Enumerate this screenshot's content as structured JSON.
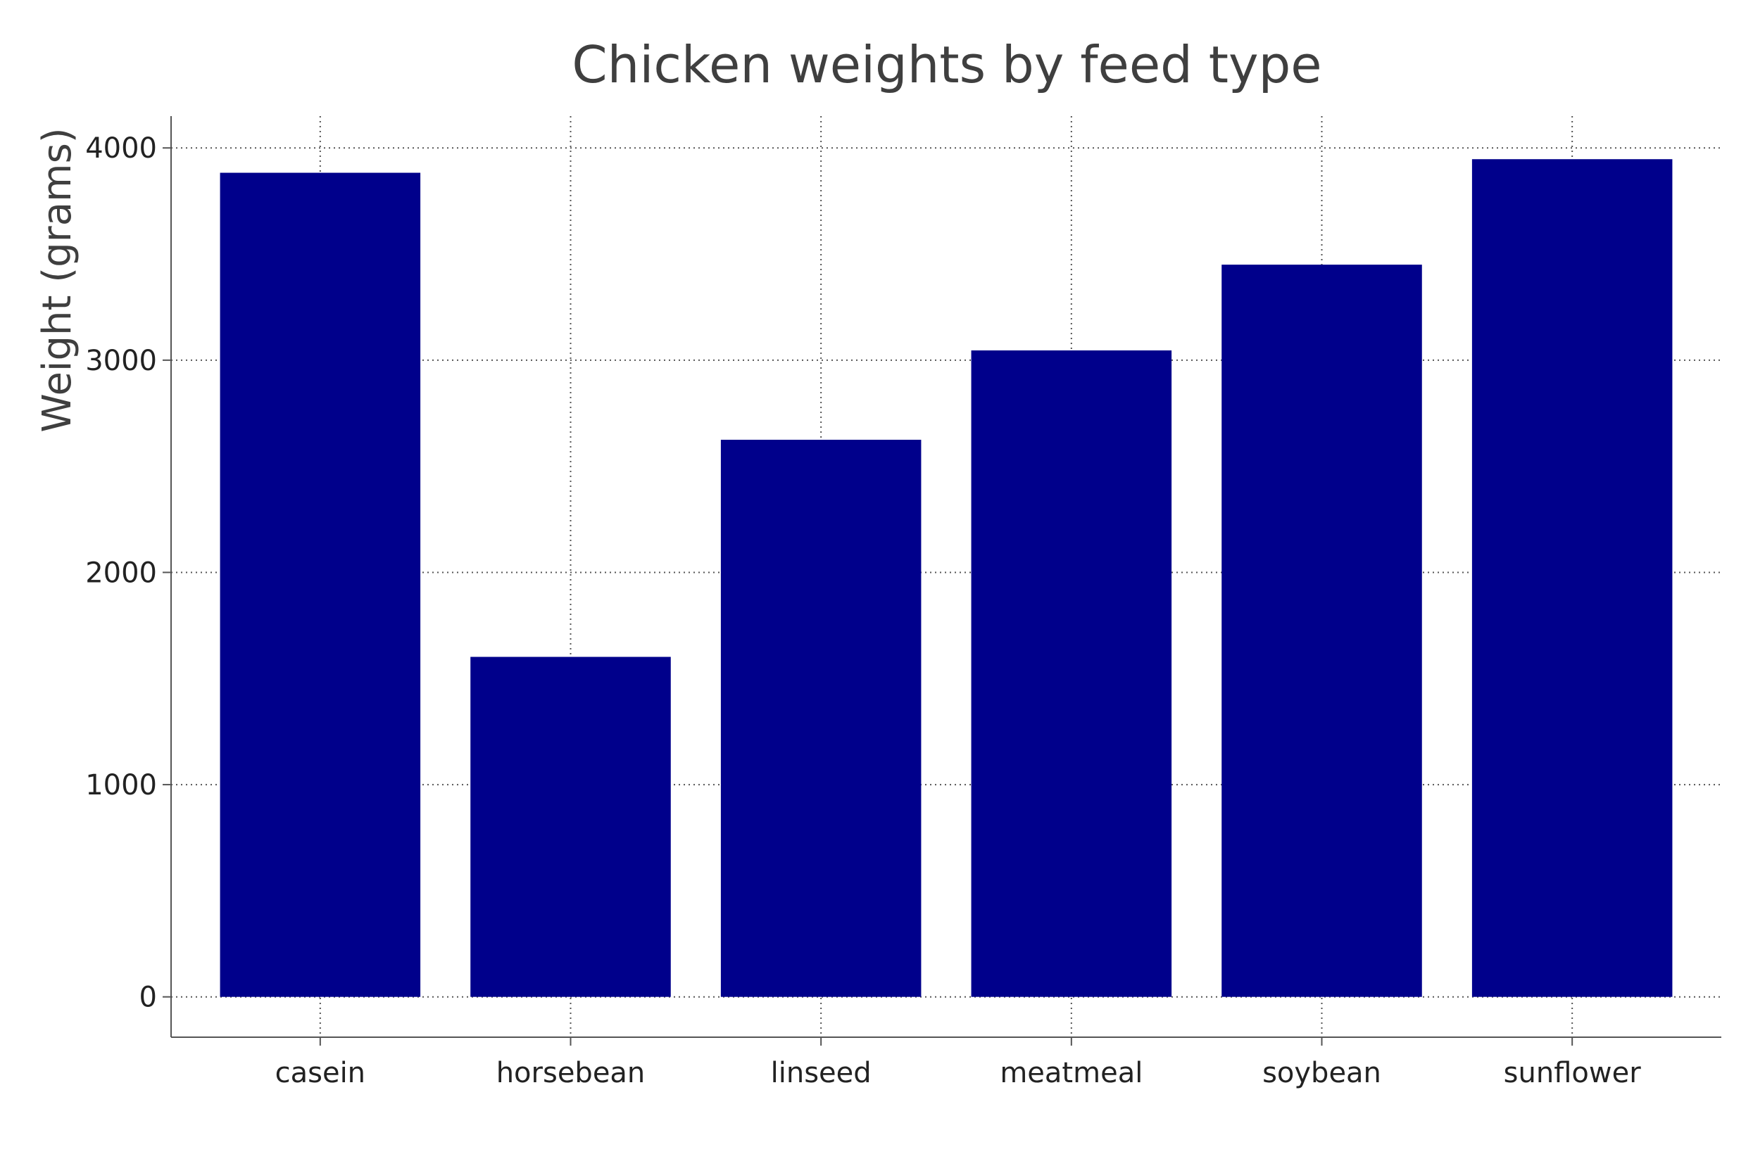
{
  "chart_data": {
    "type": "bar",
    "title": "Chicken weights by feed type",
    "xlabel": "",
    "ylabel": "Weight (grams)",
    "categories": [
      "casein",
      "horsebean",
      "linseed",
      "meatmeal",
      "soybean",
      "sunflower"
    ],
    "values": [
      3883,
      1602,
      2625,
      3046,
      3450,
      3947
    ],
    "ylim": [
      -190,
      4150
    ],
    "yticks": [
      0,
      1000,
      2000,
      3000,
      4000
    ],
    "grid": true,
    "bar_color": "#00008B"
  }
}
